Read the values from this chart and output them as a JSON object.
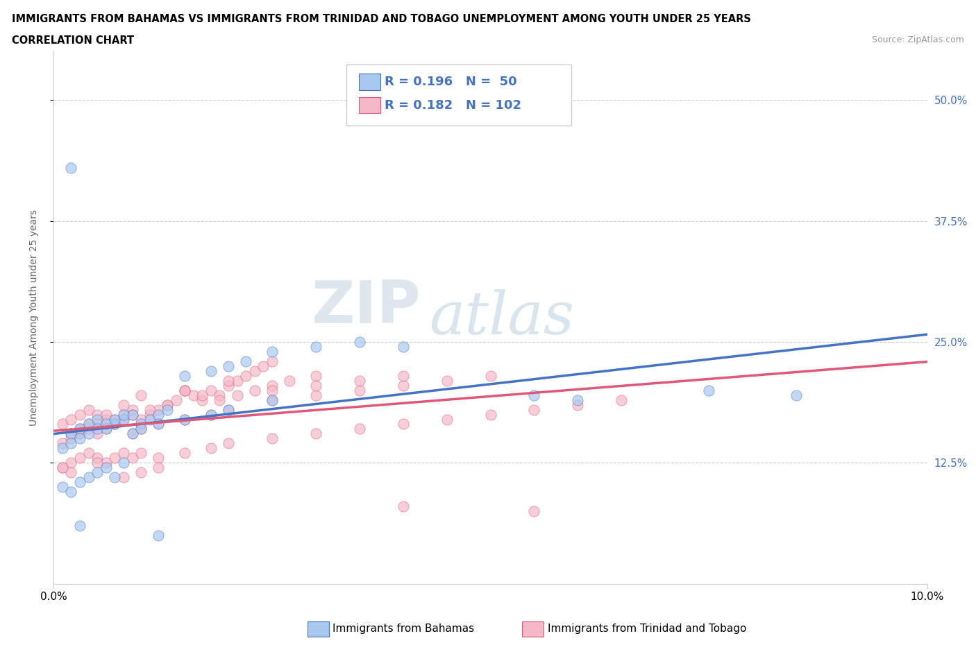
{
  "title_line1": "IMMIGRANTS FROM BAHAMAS VS IMMIGRANTS FROM TRINIDAD AND TOBAGO UNEMPLOYMENT AMONG YOUTH UNDER 25 YEARS",
  "title_line2": "CORRELATION CHART",
  "source_text": "Source: ZipAtlas.com",
  "ylabel": "Unemployment Among Youth under 25 years",
  "xlim": [
    0.0,
    0.1
  ],
  "ylim": [
    0.0,
    0.55
  ],
  "xtick_labels": [
    "0.0%",
    "10.0%"
  ],
  "ytick_labels": [
    "12.5%",
    "25.0%",
    "37.5%",
    "50.0%"
  ],
  "ytick_vals": [
    0.125,
    0.25,
    0.375,
    0.5
  ],
  "color_bahamas": "#a8c8f0",
  "color_trinidad": "#f5b8c8",
  "line_color_bahamas": "#4472c4",
  "line_color_trinidad": "#e05878",
  "r_bahamas": 0.196,
  "n_bahamas": 50,
  "r_trinidad": 0.182,
  "n_trinidad": 102,
  "legend_label_bahamas": "Immigrants from Bahamas",
  "legend_label_trinidad": "Immigrants from Trinidad and Tobago",
  "watermark_zip": "ZIP",
  "watermark_atlas": "atlas",
  "bahamas_x": [
    0.002,
    0.003,
    0.004,
    0.005,
    0.006,
    0.007,
    0.008,
    0.009,
    0.01,
    0.011,
    0.012,
    0.013,
    0.001,
    0.002,
    0.003,
    0.004,
    0.005,
    0.006,
    0.007,
    0.008,
    0.009,
    0.01,
    0.012,
    0.015,
    0.018,
    0.02,
    0.025,
    0.015,
    0.018,
    0.02,
    0.022,
    0.025,
    0.03,
    0.035,
    0.04,
    0.055,
    0.06,
    0.075,
    0.085,
    0.001,
    0.002,
    0.003,
    0.004,
    0.005,
    0.006,
    0.007,
    0.008,
    0.002,
    0.003,
    0.012
  ],
  "bahamas_y": [
    0.155,
    0.16,
    0.165,
    0.17,
    0.16,
    0.165,
    0.17,
    0.175,
    0.165,
    0.17,
    0.175,
    0.18,
    0.14,
    0.145,
    0.15,
    0.155,
    0.16,
    0.165,
    0.17,
    0.175,
    0.155,
    0.16,
    0.165,
    0.17,
    0.175,
    0.18,
    0.19,
    0.215,
    0.22,
    0.225,
    0.23,
    0.24,
    0.245,
    0.25,
    0.245,
    0.195,
    0.19,
    0.2,
    0.195,
    0.1,
    0.095,
    0.105,
    0.11,
    0.115,
    0.12,
    0.11,
    0.125,
    0.43,
    0.06,
    0.05
  ],
  "trinidad_x": [
    0.001,
    0.002,
    0.003,
    0.004,
    0.005,
    0.006,
    0.007,
    0.008,
    0.009,
    0.01,
    0.011,
    0.012,
    0.013,
    0.014,
    0.015,
    0.016,
    0.017,
    0.018,
    0.019,
    0.02,
    0.021,
    0.022,
    0.023,
    0.024,
    0.025,
    0.002,
    0.003,
    0.005,
    0.007,
    0.009,
    0.011,
    0.013,
    0.015,
    0.017,
    0.019,
    0.021,
    0.023,
    0.025,
    0.027,
    0.03,
    0.001,
    0.002,
    0.003,
    0.004,
    0.005,
    0.006,
    0.007,
    0.008,
    0.009,
    0.01,
    0.012,
    0.015,
    0.018,
    0.02,
    0.025,
    0.03,
    0.035,
    0.04,
    0.045,
    0.05,
    0.001,
    0.002,
    0.003,
    0.004,
    0.005,
    0.006,
    0.007,
    0.008,
    0.009,
    0.01,
    0.012,
    0.015,
    0.018,
    0.02,
    0.025,
    0.03,
    0.035,
    0.04,
    0.045,
    0.05,
    0.055,
    0.06,
    0.065,
    0.04,
    0.035,
    0.03,
    0.025,
    0.02,
    0.015,
    0.01,
    0.008,
    0.006,
    0.004,
    0.003,
    0.002,
    0.001,
    0.005,
    0.008,
    0.01,
    0.012,
    0.04,
    0.055
  ],
  "trinidad_y": [
    0.165,
    0.17,
    0.175,
    0.18,
    0.175,
    0.17,
    0.165,
    0.175,
    0.18,
    0.17,
    0.175,
    0.18,
    0.185,
    0.19,
    0.2,
    0.195,
    0.19,
    0.2,
    0.195,
    0.205,
    0.21,
    0.215,
    0.22,
    0.225,
    0.23,
    0.155,
    0.16,
    0.165,
    0.17,
    0.175,
    0.18,
    0.185,
    0.2,
    0.195,
    0.19,
    0.195,
    0.2,
    0.205,
    0.21,
    0.215,
    0.145,
    0.15,
    0.155,
    0.16,
    0.155,
    0.16,
    0.165,
    0.17,
    0.155,
    0.16,
    0.165,
    0.17,
    0.175,
    0.18,
    0.19,
    0.195,
    0.2,
    0.205,
    0.21,
    0.215,
    0.12,
    0.125,
    0.13,
    0.135,
    0.13,
    0.125,
    0.13,
    0.135,
    0.13,
    0.135,
    0.13,
    0.135,
    0.14,
    0.145,
    0.15,
    0.155,
    0.16,
    0.165,
    0.17,
    0.175,
    0.18,
    0.185,
    0.19,
    0.215,
    0.21,
    0.205,
    0.2,
    0.21,
    0.2,
    0.195,
    0.185,
    0.175,
    0.165,
    0.155,
    0.115,
    0.12,
    0.125,
    0.11,
    0.115,
    0.12,
    0.08,
    0.075
  ]
}
